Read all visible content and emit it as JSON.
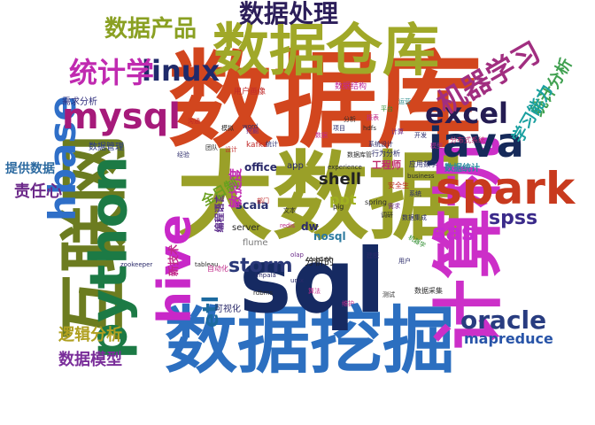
{
  "words": [
    {
      "text": "数据库",
      "color": "#d2461e"
    },
    {
      "text": "大数据",
      "color": "#9aa028"
    },
    {
      "text": "数据挖掘",
      "color": "#2c6fc0"
    },
    {
      "text": "数据仓库",
      "color": "#a0a828"
    },
    {
      "text": "sql",
      "color": "#162a62"
    },
    {
      "text": "计算机",
      "color": "#cc2fc8"
    },
    {
      "text": "互联网",
      "color": "#6c7c20"
    },
    {
      "text": "python",
      "color": "#1c7a45"
    },
    {
      "text": "spark",
      "color": "#c83a1e"
    },
    {
      "text": "hive",
      "color": "#c828c8"
    },
    {
      "text": "java",
      "color": "#162a5a"
    },
    {
      "text": "excel",
      "color": "#241c52"
    },
    {
      "text": "hbase",
      "color": "#2f6fc8"
    },
    {
      "text": "mysql",
      "color": "#a61a7a"
    },
    {
      "text": "linux",
      "color": "#1f2a6a"
    },
    {
      "text": "统计学",
      "color": "#c02ab0"
    },
    {
      "text": "机器学习",
      "color": "#a12e80"
    },
    {
      "text": "oracle",
      "color": "#283c80"
    },
    {
      "text": "spss",
      "color": "#3a2a8a"
    },
    {
      "text": "sas",
      "color": "#c82ad2"
    },
    {
      "text": "数据处理",
      "color": "#2c1e5a"
    },
    {
      "text": "数据产品",
      "color": "#8aa022"
    },
    {
      "text": "storm",
      "color": "#2a3878"
    },
    {
      "text": "etl",
      "color": "#1c6aa0"
    },
    {
      "text": "数据模型",
      "color": "#7a2e9a"
    },
    {
      "text": "逻辑分析",
      "color": "#b0a020"
    },
    {
      "text": "mapreduce",
      "color": "#2854a8"
    },
    {
      "text": "统计分析",
      "color": "#40a050"
    },
    {
      "text": "学习能力",
      "color": "#1aa0a0"
    },
    {
      "text": "责任心",
      "color": "#6c2a8a"
    },
    {
      "text": "提供数据",
      "color": "#2c6aa0"
    },
    {
      "text": "shell",
      "color": "#222222"
    },
    {
      "text": "scala",
      "color": "#2a3070"
    },
    {
      "text": "ppt",
      "color": "#a0b020"
    },
    {
      "text": "nosql",
      "color": "#2c7aa0"
    },
    {
      "text": "编程语言",
      "color": "#5a2a8a"
    },
    {
      "text": "敏捷度",
      "color": "#c02ab0"
    },
    {
      "text": "全日制",
      "color": "#6aa020"
    },
    {
      "text": "新技术",
      "color": "#c02a8a"
    },
    {
      "text": "数据统计",
      "color": "#2a8aa0"
    },
    {
      "text": "工程师",
      "color": "#c02a6a"
    },
    {
      "text": "数据管理",
      "color": "#2a3a8a"
    },
    {
      "text": "需求分析",
      "color": "#2a2a7a"
    },
    {
      "text": "用户画像",
      "color": "#c02a2a"
    },
    {
      "text": "数据结构",
      "color": "#c02a9a"
    },
    {
      "text": "office",
      "color": "#2a2a6a"
    },
    {
      "text": "server",
      "color": "#2a2a2a"
    },
    {
      "text": "kafka",
      "color": "#c02a2a"
    },
    {
      "text": "app",
      "color": "#2a2a6a"
    },
    {
      "text": "可视化",
      "color": "#2a2a6a"
    },
    {
      "text": "分析的",
      "color": "#222222"
    },
    {
      "text": "flume",
      "color": "#7a7a7a"
    },
    {
      "text": "数据采集",
      "color": "#2a2a2a"
    },
    {
      "text": "分布式系统",
      "color": "#c02a6a"
    },
    {
      "text": "行为分析",
      "color": "#2a2a6a"
    },
    {
      "text": "应用数学",
      "color": "#2a2a6a"
    },
    {
      "text": "tableau",
      "color": "#2a2a2a"
    },
    {
      "text": "dw",
      "color": "#2a2a6a"
    },
    {
      "text": "spring",
      "color": "#2a2a2a"
    },
    {
      "text": "部门",
      "color": "#c02a2a"
    },
    {
      "text": "自动化",
      "color": "#c02a8a"
    },
    {
      "text": "安全生",
      "color": "#c02a2a"
    },
    {
      "text": "pig",
      "color": "#222222"
    },
    {
      "text": "impala",
      "color": "#2a2a6a"
    },
    {
      "text": "hdfs",
      "color": "#2a2a2a"
    },
    {
      "text": "计算",
      "color": "#6a2a8a"
    },
    {
      "text": "数据集成",
      "color": "#2a2a6a"
    },
    {
      "text": "redis",
      "color": "#c02a8a"
    },
    {
      "text": "experience",
      "color": "#2a2a2a"
    },
    {
      "text": "olap",
      "color": "#6a2a8a"
    },
    {
      "text": "系统设计",
      "color": "#2a2a6a"
    },
    {
      "text": "数据库管",
      "color": "#2a2a2a"
    },
    {
      "text": "机器学",
      "color": "#2a8a2a"
    },
    {
      "text": "模型",
      "color": "#a02a8a"
    },
    {
      "text": "zookeeper",
      "color": "#2a2a6a"
    },
    {
      "text": "unix",
      "color": "#2a2a6a"
    },
    {
      "text": "research",
      "color": "#2a2a2a"
    },
    {
      "text": "用户",
      "color": "#2a2a6a"
    },
    {
      "text": "文本",
      "color": "#2a2a2a"
    },
    {
      "text": "数据",
      "color": "#c02a8a"
    },
    {
      "text": "项目",
      "color": "#2a2a6a"
    },
    {
      "text": "报表",
      "color": "#c02a8a"
    },
    {
      "text": "分析",
      "color": "#2a2a2a"
    },
    {
      "text": "挖掘",
      "color": "#6a2a8a"
    },
    {
      "text": "统计",
      "color": "#2a2a6a"
    },
    {
      "text": "模拟",
      "color": "#2a2a2a"
    },
    {
      "text": "设计",
      "color": "#c02a2a"
    },
    {
      "text": "运营",
      "color": "#2a8a8a"
    },
    {
      "text": "business",
      "color": "#2a2a2a"
    },
    {
      "text": "word",
      "color": "#2a2a6a"
    },
    {
      "text": "rdbms",
      "color": "#2a2a2a"
    },
    {
      "text": "算法",
      "color": "#c02a8a"
    },
    {
      "text": "建模",
      "color": "#2a2a6a"
    },
    {
      "text": "调研",
      "color": "#2a2a2a"
    },
    {
      "text": "需求",
      "color": "#6a2a8a"
    },
    {
      "text": "系统",
      "color": "#2a2a6a"
    },
    {
      "text": "沟通",
      "color": "#c02a2a"
    },
    {
      "text": "团队",
      "color": "#2a2a2a"
    },
    {
      "text": "经验",
      "color": "#2a2a6a"
    },
    {
      "text": "平台",
      "color": "#2a8a2a"
    },
    {
      "text": "开发",
      "color": "#2a2a6a"
    },
    {
      "text": "测试",
      "color": "#2a2a2a"
    },
    {
      "text": "维护",
      "color": "#c02a8a"
    }
  ]
}
